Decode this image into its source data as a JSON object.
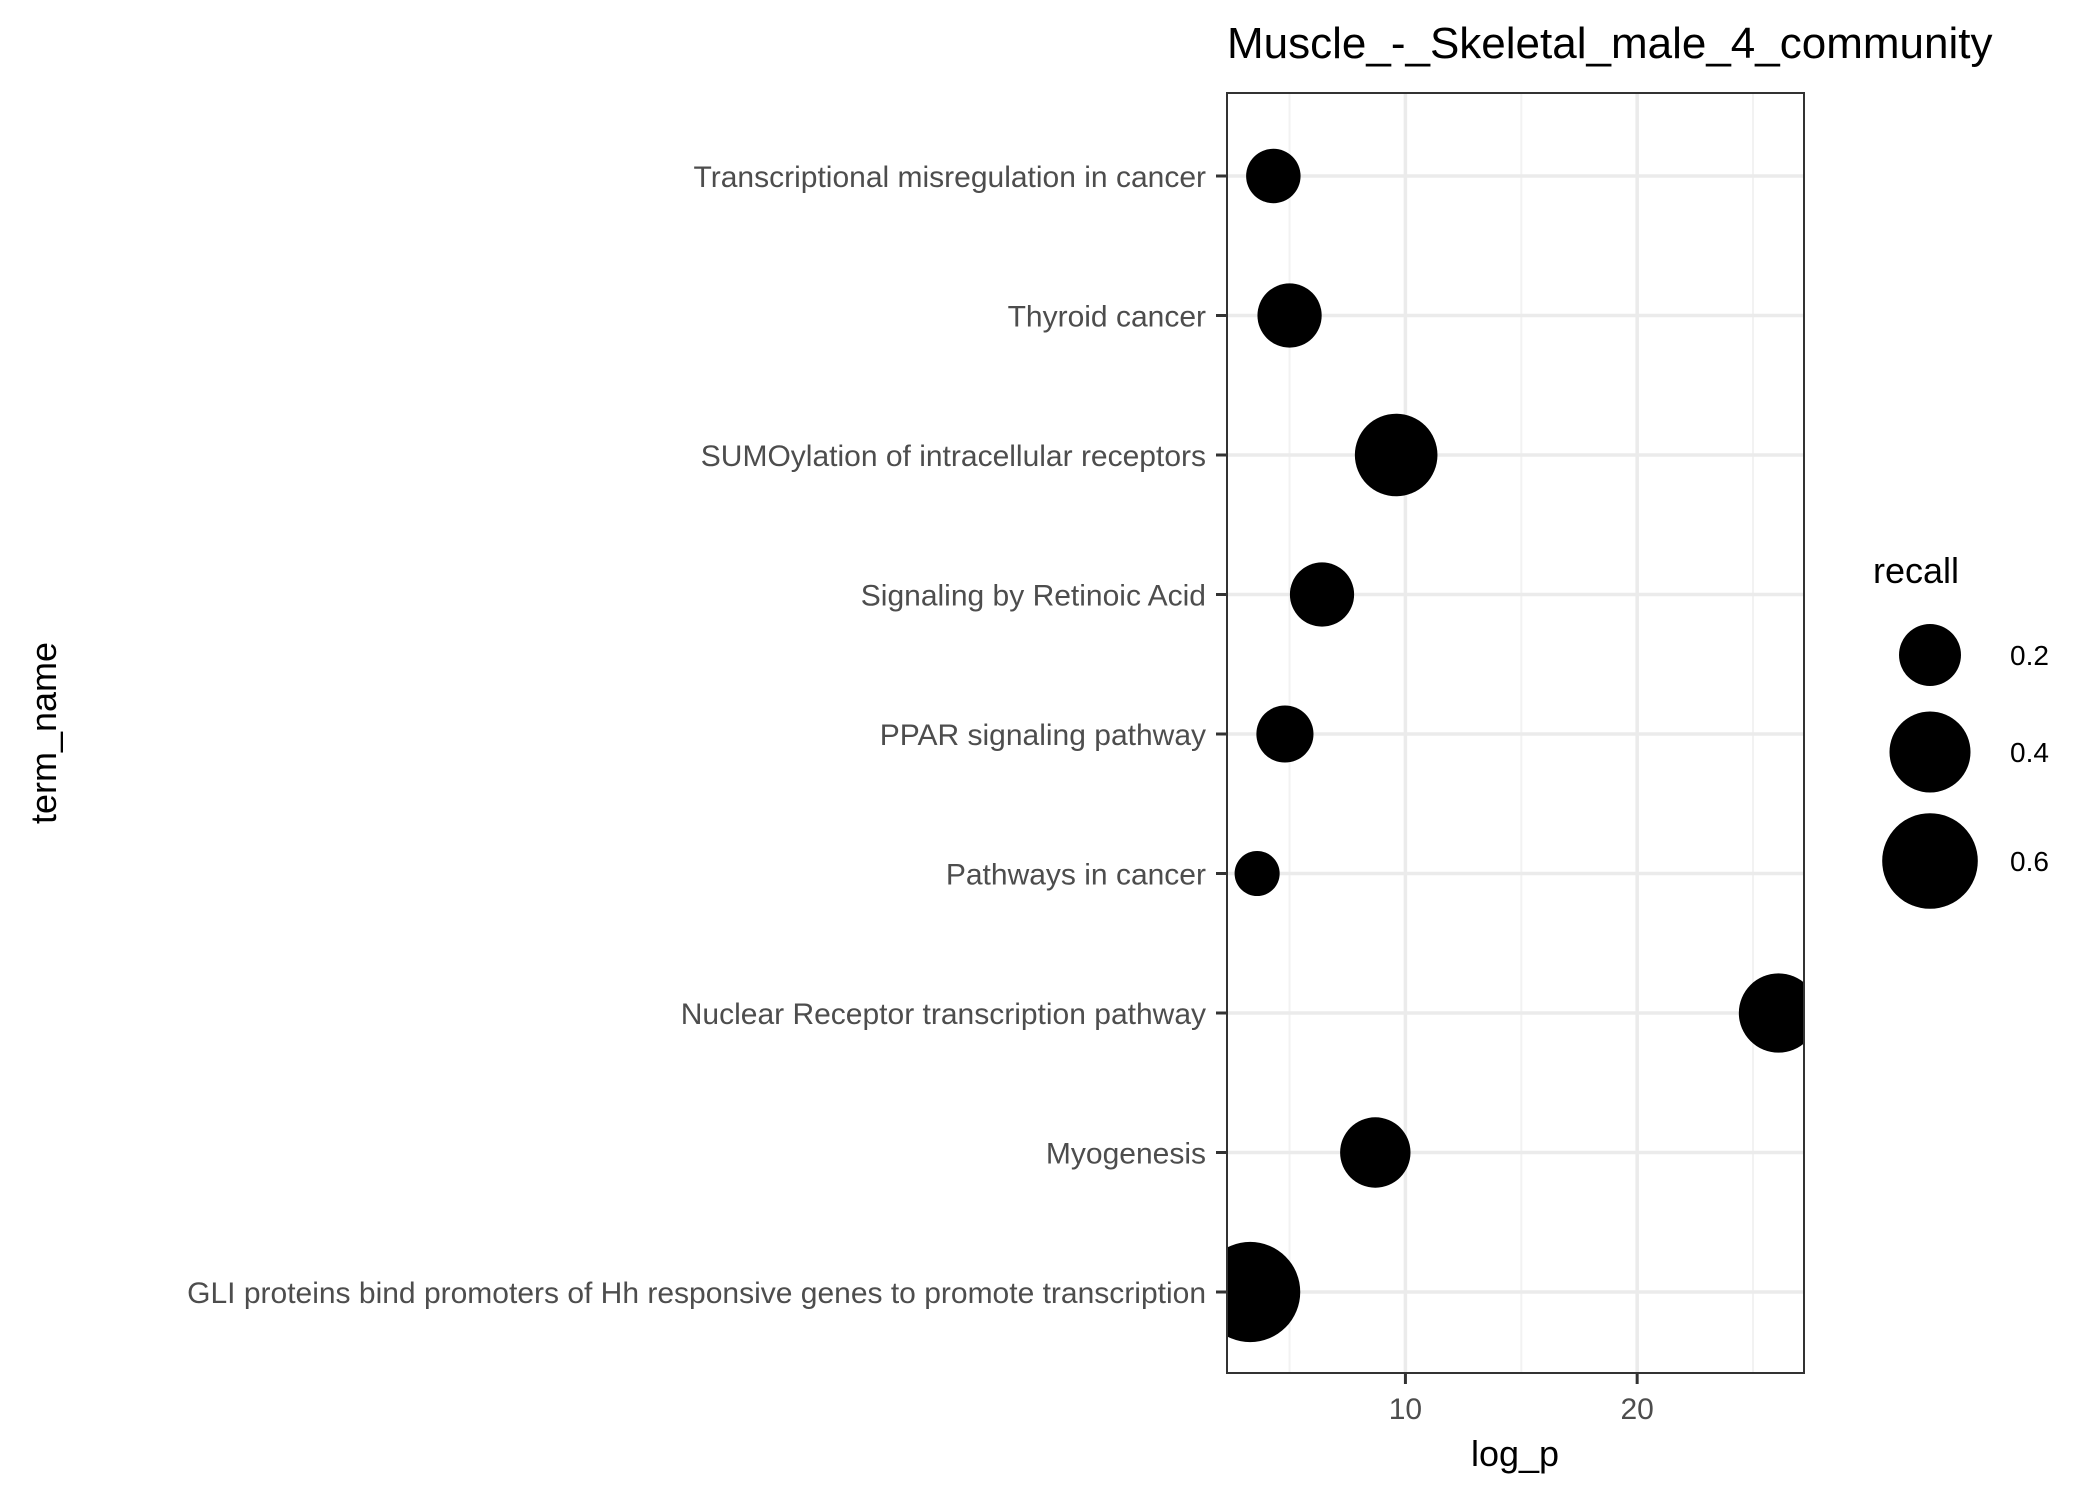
{
  "chart_data": {
    "type": "scatter",
    "title": "Muscle_-_Skeletal_male_4_community",
    "xlabel": "log_p",
    "ylabel": "term_name",
    "xlim": [
      2.3,
      27.2
    ],
    "x_ticks": [
      10,
      20
    ],
    "x_tick_labels": [
      "10",
      "20"
    ],
    "grid": true,
    "legend": {
      "title": "recall",
      "position": "right",
      "entries": [
        {
          "label": "0.2",
          "value": 0.2
        },
        {
          "label": "0.4",
          "value": 0.4
        },
        {
          "label": "0.6",
          "value": 0.6
        }
      ]
    },
    "categories": [
      "Transcriptional misregulation in cancer",
      "Thyroid cancer",
      "SUMOylation of intracellular receptors",
      "Signaling by Retinoic Acid",
      "PPAR signaling pathway",
      "Pathways in cancer",
      "Nuclear Receptor transcription pathway",
      "Myogenesis",
      "GLI proteins bind promoters of Hh responsive genes to promote transcription"
    ],
    "points": [
      {
        "term": "Transcriptional misregulation in cancer",
        "log_p": 4.3,
        "recall": 0.14
      },
      {
        "term": "Thyroid cancer",
        "log_p": 5.0,
        "recall": 0.22
      },
      {
        "term": "SUMOylation of intracellular receptors",
        "log_p": 9.6,
        "recall": 0.42
      },
      {
        "term": "Signaling by Retinoic Acid",
        "log_p": 6.4,
        "recall": 0.22
      },
      {
        "term": "PPAR signaling pathway",
        "log_p": 4.8,
        "recall": 0.16
      },
      {
        "term": "Pathways in cancer",
        "log_p": 3.6,
        "recall": 0.08
      },
      {
        "term": "Nuclear Receptor transcription pathway",
        "log_p": 26.1,
        "recall": 0.38
      },
      {
        "term": "Myogenesis",
        "log_p": 8.7,
        "recall": 0.28
      },
      {
        "term": "GLI proteins bind promoters of Hh responsive genes to promote transcription",
        "log_p": 3.3,
        "recall": 0.67
      }
    ]
  }
}
